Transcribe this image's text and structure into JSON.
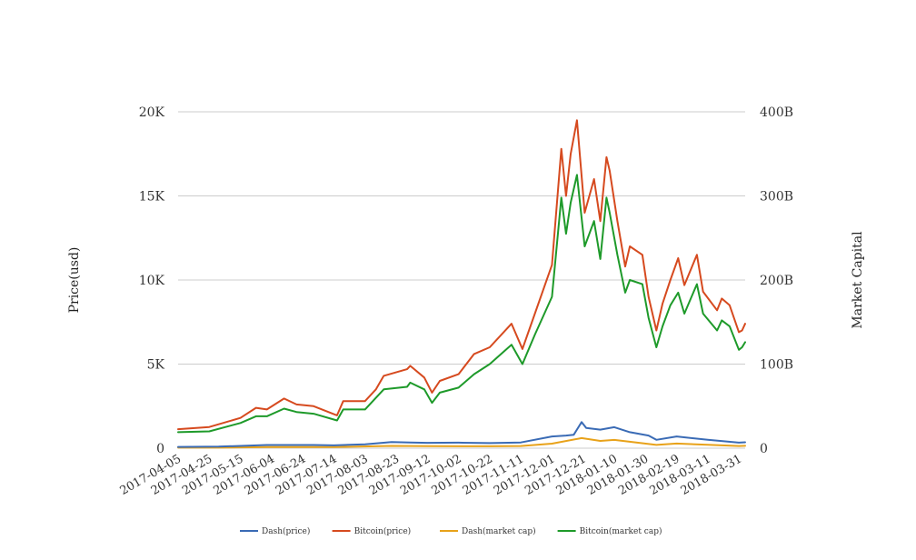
{
  "chart_data": {
    "type": "line",
    "title": "",
    "x_range": [
      "2017-04-05",
      "2018-04-04"
    ],
    "x_ticks": [
      "2017-04-05",
      "2017-04-25",
      "2017-05-15",
      "2017-06-04",
      "2017-06-24",
      "2017-07-14",
      "2017-08-03",
      "2017-08-23",
      "2017-09-12",
      "2017-10-02",
      "2017-10-22",
      "2017-11-11",
      "2017-12-01",
      "2017-12-21",
      "2018-01-10",
      "2018-01-30",
      "2018-02-19",
      "2018-03-11",
      "2018-03-31"
    ],
    "y_left": {
      "label": "Price(usd)",
      "ylim": [
        0,
        20000
      ],
      "ticks": [
        0,
        5000,
        10000,
        15000,
        20000
      ],
      "tick_labels": [
        "0",
        "5K",
        "10K",
        "15K",
        "20K"
      ]
    },
    "y_right": {
      "label": "Market Capital",
      "ylim": [
        0,
        400000000000
      ],
      "ticks": [
        0,
        100000000000,
        200000000000,
        300000000000,
        400000000000
      ],
      "tick_labels": [
        "0",
        "100B",
        "200B",
        "300B",
        "400B"
      ]
    },
    "grid": "horizontal",
    "legend_position": "bottom-center",
    "series": [
      {
        "name": "Dash(price)",
        "axis": "left",
        "color": "#3a6bb5",
        "points": [
          [
            "2017-04-05",
            75
          ],
          [
            "2017-05-01",
            90
          ],
          [
            "2017-06-01",
            190
          ],
          [
            "2017-07-01",
            190
          ],
          [
            "2017-07-14",
            170
          ],
          [
            "2017-08-03",
            230
          ],
          [
            "2017-08-20",
            360
          ],
          [
            "2017-09-01",
            340
          ],
          [
            "2017-09-12",
            320
          ],
          [
            "2017-10-02",
            330
          ],
          [
            "2017-10-22",
            300
          ],
          [
            "2017-11-11",
            340
          ],
          [
            "2017-12-01",
            700
          ],
          [
            "2017-12-10",
            750
          ],
          [
            "2017-12-15",
            800
          ],
          [
            "2017-12-20",
            1550
          ],
          [
            "2017-12-23",
            1200
          ],
          [
            "2018-01-01",
            1100
          ],
          [
            "2018-01-10",
            1250
          ],
          [
            "2018-01-20",
            950
          ],
          [
            "2018-02-01",
            750
          ],
          [
            "2018-02-06",
            500
          ],
          [
            "2018-02-19",
            700
          ],
          [
            "2018-03-11",
            500
          ],
          [
            "2018-03-31",
            330
          ],
          [
            "2018-04-04",
            350
          ]
        ]
      },
      {
        "name": "Bitcoin(price)",
        "axis": "left",
        "color": "#d64a1f",
        "points": [
          [
            "2017-04-05",
            1130
          ],
          [
            "2017-04-25",
            1260
          ],
          [
            "2017-05-15",
            1800
          ],
          [
            "2017-05-25",
            2400
          ],
          [
            "2017-06-01",
            2300
          ],
          [
            "2017-06-12",
            2950
          ],
          [
            "2017-06-20",
            2600
          ],
          [
            "2017-07-01",
            2500
          ],
          [
            "2017-07-16",
            1950
          ],
          [
            "2017-07-20",
            2800
          ],
          [
            "2017-08-03",
            2800
          ],
          [
            "2017-08-10",
            3500
          ],
          [
            "2017-08-15",
            4300
          ],
          [
            "2017-08-30",
            4700
          ],
          [
            "2017-09-01",
            4900
          ],
          [
            "2017-09-10",
            4200
          ],
          [
            "2017-09-15",
            3300
          ],
          [
            "2017-09-20",
            4000
          ],
          [
            "2017-10-02",
            4400
          ],
          [
            "2017-10-12",
            5600
          ],
          [
            "2017-10-22",
            6000
          ],
          [
            "2017-11-05",
            7400
          ],
          [
            "2017-11-12",
            5900
          ],
          [
            "2017-11-20",
            8000
          ],
          [
            "2017-12-01",
            10900
          ],
          [
            "2017-12-07",
            17800
          ],
          [
            "2017-12-10",
            15000
          ],
          [
            "2017-12-13",
            17500
          ],
          [
            "2017-12-17",
            19500
          ],
          [
            "2017-12-22",
            14000
          ],
          [
            "2017-12-28",
            16000
          ],
          [
            "2018-01-01",
            13500
          ],
          [
            "2018-01-05",
            17300
          ],
          [
            "2018-01-07",
            16500
          ],
          [
            "2018-01-12",
            13500
          ],
          [
            "2018-01-17",
            10800
          ],
          [
            "2018-01-20",
            12000
          ],
          [
            "2018-01-28",
            11500
          ],
          [
            "2018-02-01",
            9000
          ],
          [
            "2018-02-06",
            7000
          ],
          [
            "2018-02-10",
            8600
          ],
          [
            "2018-02-15",
            10000
          ],
          [
            "2018-02-20",
            11300
          ],
          [
            "2018-02-24",
            9700
          ],
          [
            "2018-03-04",
            11500
          ],
          [
            "2018-03-08",
            9300
          ],
          [
            "2018-03-17",
            8200
          ],
          [
            "2018-03-20",
            8900
          ],
          [
            "2018-03-25",
            8500
          ],
          [
            "2018-03-31",
            6900
          ],
          [
            "2018-04-02",
            7000
          ],
          [
            "2018-04-04",
            7400
          ]
        ]
      },
      {
        "name": "Dash(market cap)",
        "axis": "right",
        "color": "#e8a21a",
        "points": [
          [
            "2017-04-05",
            600000000
          ],
          [
            "2017-05-01",
            700000000
          ],
          [
            "2017-06-01",
            1400000000
          ],
          [
            "2017-07-14",
            1300000000
          ],
          [
            "2017-08-20",
            2700000000
          ],
          [
            "2017-09-12",
            2400000000
          ],
          [
            "2017-10-22",
            2300000000
          ],
          [
            "2017-11-11",
            2600000000
          ],
          [
            "2017-12-01",
            5400000000
          ],
          [
            "2017-12-20",
            12000000000
          ],
          [
            "2018-01-01",
            8600000000
          ],
          [
            "2018-01-10",
            9800000000
          ],
          [
            "2018-02-06",
            3900000000
          ],
          [
            "2018-02-19",
            5500000000
          ],
          [
            "2018-03-11",
            4000000000
          ],
          [
            "2018-03-31",
            2600000000
          ],
          [
            "2018-04-04",
            2800000000
          ]
        ]
      },
      {
        "name": "Bitcoin(market cap)",
        "axis": "right",
        "color": "#1e9a2a",
        "points": [
          [
            "2017-04-05",
            19000000000
          ],
          [
            "2017-04-25",
            20000000000
          ],
          [
            "2017-05-15",
            30000000000
          ],
          [
            "2017-05-25",
            38000000000
          ],
          [
            "2017-06-01",
            38000000000
          ],
          [
            "2017-06-12",
            47000000000
          ],
          [
            "2017-06-20",
            43000000000
          ],
          [
            "2017-07-01",
            41000000000
          ],
          [
            "2017-07-16",
            33000000000
          ],
          [
            "2017-07-20",
            46000000000
          ],
          [
            "2017-08-03",
            46000000000
          ],
          [
            "2017-08-15",
            70000000000
          ],
          [
            "2017-08-30",
            73000000000
          ],
          [
            "2017-09-01",
            78000000000
          ],
          [
            "2017-09-10",
            70000000000
          ],
          [
            "2017-09-15",
            54000000000
          ],
          [
            "2017-09-20",
            66000000000
          ],
          [
            "2017-10-02",
            72000000000
          ],
          [
            "2017-10-12",
            88000000000
          ],
          [
            "2017-10-22",
            100000000000
          ],
          [
            "2017-11-05",
            123000000000
          ],
          [
            "2017-11-12",
            100000000000
          ],
          [
            "2017-11-20",
            135000000000
          ],
          [
            "2017-12-01",
            180000000000
          ],
          [
            "2017-12-07",
            298000000000
          ],
          [
            "2017-12-10",
            255000000000
          ],
          [
            "2017-12-13",
            292000000000
          ],
          [
            "2017-12-17",
            325000000000
          ],
          [
            "2017-12-22",
            240000000000
          ],
          [
            "2017-12-28",
            270000000000
          ],
          [
            "2018-01-01",
            225000000000
          ],
          [
            "2018-01-05",
            298000000000
          ],
          [
            "2018-01-07",
            280000000000
          ],
          [
            "2018-01-12",
            230000000000
          ],
          [
            "2018-01-17",
            185000000000
          ],
          [
            "2018-01-20",
            200000000000
          ],
          [
            "2018-01-28",
            195000000000
          ],
          [
            "2018-02-01",
            155000000000
          ],
          [
            "2018-02-06",
            120000000000
          ],
          [
            "2018-02-10",
            145000000000
          ],
          [
            "2018-02-15",
            170000000000
          ],
          [
            "2018-02-20",
            185000000000
          ],
          [
            "2018-02-24",
            160000000000
          ],
          [
            "2018-03-04",
            195000000000
          ],
          [
            "2018-03-08",
            160000000000
          ],
          [
            "2018-03-17",
            140000000000
          ],
          [
            "2018-03-20",
            152000000000
          ],
          [
            "2018-03-25",
            145000000000
          ],
          [
            "2018-03-31",
            117000000000
          ],
          [
            "2018-04-02",
            120000000000
          ],
          [
            "2018-04-04",
            126000000000
          ]
        ]
      }
    ]
  }
}
